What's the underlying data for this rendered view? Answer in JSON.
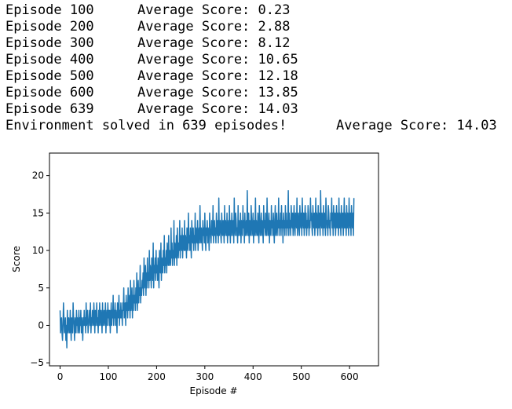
{
  "output_log": {
    "lines": [
      {
        "episode": "Episode 100",
        "score": "Average Score: 0.23"
      },
      {
        "episode": "Episode 200",
        "score": "Average Score: 2.88"
      },
      {
        "episode": "Episode 300",
        "score": "Average Score: 8.12"
      },
      {
        "episode": "Episode 400",
        "score": "Average Score: 10.65"
      },
      {
        "episode": "Episode 500",
        "score": "Average Score: 12.18"
      },
      {
        "episode": "Episode 600",
        "score": "Average Score: 13.85"
      },
      {
        "episode": "Episode 639",
        "score": "Average Score: 14.03"
      }
    ],
    "solved_message": "Environment solved in 639 episodes!",
    "solved_score": "Average Score: 14.03"
  },
  "chart_data": {
    "type": "line",
    "xlabel": "Episode #",
    "ylabel": "Score",
    "xlim": [
      -22,
      660
    ],
    "ylim": [
      -5.4,
      23.0
    ],
    "xticks": [
      0,
      100,
      200,
      300,
      400,
      500,
      600
    ],
    "yticks": [
      -5,
      0,
      5,
      10,
      15,
      20
    ],
    "grid": false,
    "line_color": "#1f77b4",
    "series": [
      {
        "x_start": 0,
        "x_step": 1,
        "values": [
          2,
          -1,
          0,
          1,
          -1,
          -2,
          0,
          3,
          1,
          -1,
          0,
          1,
          -2,
          0,
          -3,
          2,
          0,
          -1,
          1,
          0,
          -1,
          2,
          0,
          -2,
          1,
          0,
          -1,
          3,
          1,
          0,
          -2,
          1,
          0,
          -1,
          2,
          0,
          1,
          -1,
          0,
          2,
          -1,
          1,
          0,
          2,
          -1,
          1,
          0,
          -2,
          1,
          0,
          2,
          0,
          1,
          -1,
          3,
          0,
          1,
          2,
          -1,
          0,
          1,
          2,
          0,
          3,
          -1,
          1,
          0,
          2,
          1,
          0,
          3,
          1,
          -1,
          2,
          0,
          1,
          3,
          0,
          1,
          -1,
          2,
          0,
          3,
          1,
          0,
          2,
          1,
          -1,
          3,
          0,
          1,
          2,
          0,
          1,
          3,
          -1,
          1,
          2,
          0,
          3,
          1,
          2,
          0,
          2,
          -1,
          1,
          3,
          0,
          2,
          1,
          4,
          0,
          2,
          1,
          3,
          0,
          2,
          1,
          -1,
          3,
          2,
          1,
          4,
          0,
          2,
          1,
          3,
          1,
          2,
          0,
          3,
          2,
          5,
          1,
          2,
          3,
          0,
          4,
          2,
          3,
          1,
          5,
          2,
          3,
          4,
          1,
          6,
          2,
          3,
          5,
          1,
          4,
          2,
          6,
          3,
          4,
          2,
          5,
          3,
          7,
          2,
          4,
          6,
          3,
          5,
          4,
          8,
          3,
          5,
          4,
          6,
          5,
          7,
          4,
          9,
          5,
          6,
          8,
          4,
          7,
          5,
          9,
          6,
          7,
          5,
          10,
          6,
          8,
          7,
          5,
          9,
          7,
          6,
          11,
          5,
          8,
          7,
          9,
          6,
          10,
          7,
          8,
          6,
          9,
          7,
          5,
          10,
          8,
          7,
          11,
          6,
          9,
          8,
          7,
          10,
          8,
          12,
          7,
          9,
          8,
          10,
          7,
          11,
          9,
          8,
          12,
          8,
          10,
          9,
          8,
          13,
          9,
          11,
          8,
          10,
          9,
          14,
          8,
          11,
          10,
          9,
          12,
          8,
          13,
          10,
          9,
          11,
          10,
          14,
          9,
          12,
          11,
          10,
          13,
          9,
          12,
          11,
          10,
          14,
          10,
          12,
          11,
          9,
          13,
          11,
          10,
          15,
          11,
          12,
          10,
          13,
          11,
          9,
          14,
          12,
          11,
          13,
          10,
          12,
          11,
          15,
          10,
          13,
          12,
          11,
          14,
          10,
          12,
          13,
          11,
          16,
          12,
          11,
          13,
          12,
          10,
          14,
          12,
          13,
          11,
          15,
          12,
          10,
          13,
          12,
          14,
          11,
          13,
          12,
          10,
          15,
          13,
          12,
          11,
          14,
          13,
          12,
          16,
          11,
          13,
          14,
          12,
          13,
          11,
          15,
          13,
          12,
          14,
          11,
          17,
          12,
          13,
          14,
          12,
          11,
          15,
          13,
          12,
          14,
          13,
          11,
          16,
          12,
          14,
          13,
          12,
          15,
          11,
          13,
          14,
          12,
          16,
          13,
          11,
          14,
          12,
          15,
          13,
          12,
          14,
          11,
          17,
          13,
          12,
          15,
          14,
          12,
          13,
          11,
          16,
          12,
          14,
          13,
          12,
          15,
          11,
          14,
          13,
          12,
          16,
          13,
          14,
          11,
          15,
          12,
          13,
          14,
          12,
          18,
          13,
          12,
          15,
          11,
          14,
          13,
          12,
          16,
          14,
          12,
          13,
          15,
          11,
          14,
          12,
          13,
          17,
          12,
          14,
          13,
          12,
          15,
          13,
          11,
          16,
          14,
          12,
          13,
          15,
          12,
          14,
          13,
          11,
          16,
          13,
          14,
          12,
          15,
          13,
          12,
          17,
          14,
          12,
          13,
          15,
          11,
          14,
          13,
          12,
          16,
          13,
          14,
          12,
          15,
          13,
          11,
          14,
          16,
          12,
          13,
          15,
          12,
          14,
          13,
          17,
          12,
          14,
          13,
          15,
          12,
          16,
          13,
          14,
          11,
          15,
          13,
          14,
          12,
          16,
          13,
          15,
          12,
          14,
          13,
          18,
          12,
          15,
          13,
          14,
          12,
          16,
          14,
          13,
          15,
          12,
          14,
          16,
          13,
          12,
          15,
          14,
          13,
          17,
          12,
          14,
          15,
          13,
          12,
          16,
          14,
          13,
          15,
          12,
          17,
          14,
          13,
          15,
          12,
          14,
          16,
          13,
          15,
          12,
          14,
          13,
          16,
          15,
          12,
          14,
          13,
          17,
          14,
          15,
          13,
          12,
          16,
          14,
          13,
          15,
          12,
          14,
          17,
          13,
          15,
          14,
          12,
          16,
          13,
          15,
          14,
          12,
          18,
          14,
          13,
          15,
          14,
          12,
          16,
          13,
          15,
          14,
          12,
          17,
          15,
          13,
          14,
          12,
          16,
          15,
          13,
          14,
          12,
          15,
          14,
          17,
          13,
          15,
          12,
          16,
          14,
          13,
          15,
          12,
          14,
          16,
          13,
          15,
          14,
          12,
          17,
          13,
          15,
          14,
          12,
          16,
          14,
          13,
          15,
          12,
          14,
          17,
          13,
          15,
          14,
          12,
          16,
          13,
          15,
          14,
          12,
          17,
          14,
          13,
          15,
          12,
          16,
          14,
          13,
          15,
          12,
          17
        ]
      }
    ]
  }
}
